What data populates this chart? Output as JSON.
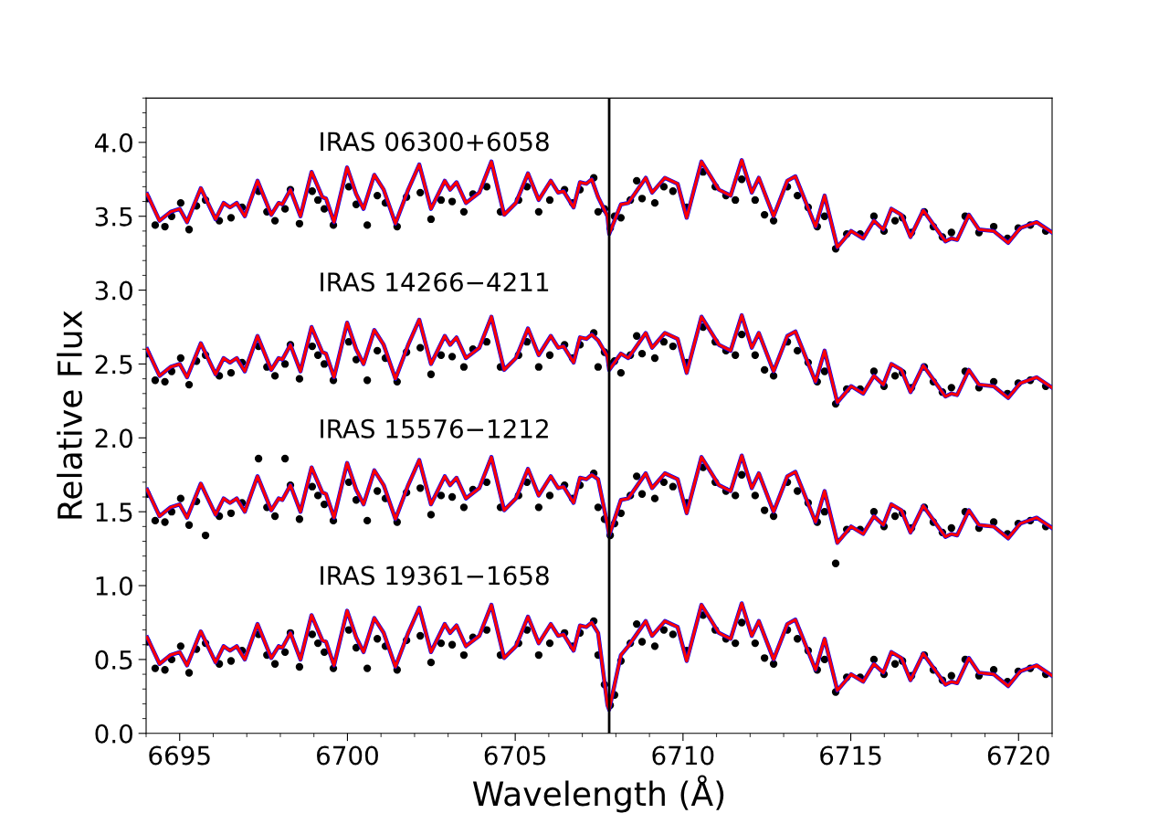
{
  "chart_data": {
    "type": "line",
    "xlabel": "Wavelength (Å)",
    "ylabel": "Relative Flux",
    "xlim": [
      6694,
      6721
    ],
    "ylim": [
      0,
      4.3
    ],
    "xticks": [
      6695,
      6700,
      6705,
      6710,
      6715,
      6720
    ],
    "yticks": [
      {
        "value": 0,
        "label": "0.0"
      },
      {
        "value": 0.5,
        "label": "0.5"
      },
      {
        "value": 1,
        "label": "1.0"
      },
      {
        "value": 1.5,
        "label": "1.5"
      },
      {
        "value": 2,
        "label": "2.0"
      },
      {
        "value": 2.5,
        "label": "2.5"
      },
      {
        "value": 3,
        "label": "3.0"
      },
      {
        "value": 3.5,
        "label": "3.5"
      },
      {
        "value": 4,
        "label": "4.0"
      }
    ],
    "ref_lines": [
      {
        "axis": "x",
        "value": 6707.8,
        "color": "#000000",
        "line_style": "solid"
      }
    ],
    "annotations": [
      "IRAS 06300+6058",
      "IRAS 14266−4211",
      "IRAS 15576−1212",
      "IRAS 19361−1658"
    ],
    "series": [
      {
        "type": "scatter",
        "color": "#000000",
        "x": [
          6694.03,
          6694.27,
          6694.56,
          6694.76,
          6695.03,
          6695.28,
          6695.5,
          6695.77,
          6696.18,
          6696.53,
          6696.86,
          6697.35,
          6697.6,
          6697.84,
          6698.14,
          6698.3,
          6698.57,
          6698.95,
          6699.12,
          6699.31,
          6699.58,
          6700.04,
          6700.26,
          6700.59,
          6700.89,
          6701.13,
          6701.48,
          6701.76,
          6702.17,
          6702.49,
          6702.79,
          6703.12,
          6703.47,
          6703.74,
          6704.15,
          6704.56,
          6705.1,
          6705.35,
          6705.7,
          6706.03,
          6706.47,
          6706.71,
          6706.93,
          6707.34,
          6707.47,
          6707.66,
          6707.83,
          6707.96,
          6708.15,
          6708.43,
          6708.62,
          6708.78,
          6709.16,
          6709.43,
          6709.7,
          6710.11,
          6710.6,
          6710.96,
          6711.28,
          6711.56,
          6711.75,
          6712.15,
          6712.43,
          6712.7,
          6713.11,
          6713.41,
          6713.73,
          6714.0,
          6714.22,
          6714.55,
          6714.88,
          6715.28,
          6715.69,
          6715.99,
          6716.32,
          6716.54,
          6716.81,
          6717.19,
          6717.46,
          6717.73,
          6718.0,
          6718.41,
          6718.82,
          6719.26,
          6719.67,
          6719.99,
          6720.35,
          6720.81
        ],
        "values": [
          3.62,
          3.44,
          3.43,
          3.5,
          3.59,
          3.41,
          3.57,
          3.61,
          3.47,
          3.49,
          3.56,
          3.67,
          3.53,
          3.47,
          3.55,
          3.68,
          3.45,
          3.67,
          3.61,
          3.55,
          3.44,
          3.7,
          3.58,
          3.44,
          3.64,
          3.59,
          3.43,
          3.63,
          3.66,
          3.48,
          3.61,
          3.6,
          3.53,
          3.65,
          3.7,
          3.53,
          3.61,
          3.7,
          3.53,
          3.61,
          3.68,
          3.59,
          3.68,
          3.76,
          3.53,
          3.55,
          3.42,
          3.5,
          3.49,
          3.61,
          3.74,
          3.62,
          3.59,
          3.7,
          3.67,
          3.56,
          3.8,
          3.7,
          3.64,
          3.61,
          3.75,
          3.61,
          3.51,
          3.47,
          3.7,
          3.64,
          3.56,
          3.43,
          3.5,
          3.28,
          3.38,
          3.38,
          3.5,
          3.4,
          3.47,
          3.49,
          3.39,
          3.53,
          3.43,
          3.36,
          3.39,
          3.5,
          3.39,
          3.43,
          3.35,
          3.42,
          3.44,
          3.4
        ]
      },
      {
        "type": "scatter",
        "color": "#000000",
        "x": [
          6694.03,
          6694.27,
          6694.56,
          6694.76,
          6695.03,
          6695.28,
          6695.5,
          6695.77,
          6696.18,
          6696.53,
          6696.86,
          6697.35,
          6697.6,
          6697.84,
          6698.14,
          6698.3,
          6698.57,
          6698.95,
          6699.12,
          6699.31,
          6699.58,
          6700.04,
          6700.26,
          6700.59,
          6700.89,
          6701.13,
          6701.48,
          6701.76,
          6702.17,
          6702.49,
          6702.79,
          6703.12,
          6703.47,
          6703.74,
          6704.15,
          6704.56,
          6705.1,
          6705.35,
          6705.7,
          6706.03,
          6706.47,
          6706.71,
          6706.93,
          6707.34,
          6707.47,
          6707.66,
          6707.83,
          6707.96,
          6708.15,
          6708.43,
          6708.62,
          6708.78,
          6709.16,
          6709.43,
          6709.7,
          6710.11,
          6710.6,
          6710.96,
          6711.28,
          6711.56,
          6711.75,
          6712.15,
          6712.43,
          6712.7,
          6713.11,
          6713.41,
          6713.73,
          6714.0,
          6714.22,
          6714.55,
          6714.88,
          6715.28,
          6715.69,
          6715.99,
          6716.32,
          6716.54,
          6716.81,
          6717.19,
          6717.46,
          6717.73,
          6718.0,
          6718.41,
          6718.82,
          6719.26,
          6719.67,
          6719.99,
          6720.35,
          6720.81
        ],
        "values": [
          2.57,
          2.39,
          2.38,
          2.45,
          2.54,
          2.36,
          2.52,
          2.56,
          2.42,
          2.44,
          2.51,
          2.62,
          2.48,
          2.42,
          2.5,
          2.63,
          2.4,
          2.62,
          2.56,
          2.5,
          2.39,
          2.65,
          2.53,
          2.39,
          2.59,
          2.54,
          2.38,
          2.58,
          2.61,
          2.43,
          2.56,
          2.55,
          2.48,
          2.6,
          2.65,
          2.48,
          2.56,
          2.65,
          2.48,
          2.56,
          2.63,
          2.54,
          2.63,
          2.71,
          2.48,
          2.58,
          2.5,
          2.52,
          2.44,
          2.56,
          2.69,
          2.57,
          2.54,
          2.65,
          2.62,
          2.51,
          2.75,
          2.65,
          2.59,
          2.56,
          2.7,
          2.56,
          2.46,
          2.42,
          2.65,
          2.59,
          2.51,
          2.38,
          2.45,
          2.23,
          2.33,
          2.33,
          2.45,
          2.35,
          2.42,
          2.44,
          2.34,
          2.48,
          2.38,
          2.31,
          2.34,
          2.45,
          2.34,
          2.38,
          2.3,
          2.37,
          2.39,
          2.35
        ]
      },
      {
        "type": "scatter",
        "color": "#000000",
        "x": [
          6694.03,
          6694.27,
          6694.56,
          6694.76,
          6695.03,
          6695.28,
          6695.5,
          6695.77,
          6696.18,
          6696.53,
          6696.86,
          6697.35,
          6697.6,
          6697.84,
          6698.14,
          6698.3,
          6698.57,
          6698.95,
          6699.12,
          6699.31,
          6699.58,
          6700.04,
          6700.26,
          6700.59,
          6700.89,
          6701.13,
          6701.48,
          6701.76,
          6702.17,
          6702.49,
          6702.79,
          6703.12,
          6703.47,
          6703.74,
          6704.15,
          6704.56,
          6705.1,
          6705.35,
          6705.7,
          6706.03,
          6706.47,
          6706.71,
          6706.93,
          6707.34,
          6707.47,
          6707.66,
          6707.83,
          6707.96,
          6708.15,
          6708.43,
          6708.62,
          6708.78,
          6709.16,
          6709.43,
          6709.7,
          6710.11,
          6710.6,
          6710.96,
          6711.28,
          6711.56,
          6711.75,
          6712.15,
          6712.43,
          6712.7,
          6713.11,
          6713.41,
          6713.73,
          6714.0,
          6714.22,
          6714.55,
          6714.88,
          6715.28,
          6715.69,
          6715.99,
          6716.32,
          6716.54,
          6716.81,
          6717.19,
          6717.46,
          6717.73,
          6718.0,
          6718.41,
          6718.82,
          6719.26,
          6719.67,
          6719.99,
          6720.35,
          6720.81
        ],
        "values": [
          1.62,
          1.44,
          1.43,
          1.5,
          1.59,
          1.41,
          1.57,
          1.34,
          1.47,
          1.49,
          1.56,
          1.86,
          1.53,
          1.47,
          1.86,
          1.68,
          1.45,
          1.67,
          1.61,
          1.55,
          1.44,
          1.7,
          1.58,
          1.44,
          1.64,
          1.59,
          1.43,
          1.63,
          1.66,
          1.48,
          1.61,
          1.6,
          1.53,
          1.65,
          1.7,
          1.53,
          1.61,
          1.7,
          1.53,
          1.61,
          1.68,
          1.59,
          1.68,
          1.76,
          1.53,
          1.45,
          1.34,
          1.42,
          1.49,
          1.61,
          1.74,
          1.62,
          1.59,
          1.7,
          1.67,
          1.56,
          1.8,
          1.7,
          1.64,
          1.61,
          1.75,
          1.61,
          1.51,
          1.47,
          1.7,
          1.64,
          1.56,
          1.43,
          1.5,
          1.15,
          1.38,
          1.38,
          1.5,
          1.4,
          1.47,
          1.49,
          1.39,
          1.53,
          1.43,
          1.36,
          1.39,
          1.5,
          1.39,
          1.43,
          1.35,
          1.42,
          1.44,
          1.4
        ]
      },
      {
        "type": "scatter",
        "color": "#000000",
        "x": [
          6694.03,
          6694.27,
          6694.56,
          6694.76,
          6695.03,
          6695.28,
          6695.5,
          6695.77,
          6696.18,
          6696.53,
          6696.86,
          6697.35,
          6697.6,
          6697.84,
          6698.14,
          6698.3,
          6698.57,
          6698.95,
          6699.12,
          6699.31,
          6699.58,
          6700.04,
          6700.26,
          6700.59,
          6700.89,
          6701.13,
          6701.48,
          6701.76,
          6702.17,
          6702.49,
          6702.79,
          6703.12,
          6703.47,
          6703.74,
          6704.15,
          6704.56,
          6705.1,
          6705.35,
          6705.7,
          6706.03,
          6706.47,
          6706.71,
          6706.93,
          6707.34,
          6707.47,
          6707.66,
          6707.83,
          6707.96,
          6708.15,
          6708.43,
          6708.62,
          6708.78,
          6709.16,
          6709.43,
          6709.7,
          6710.11,
          6710.6,
          6710.96,
          6711.28,
          6711.56,
          6711.75,
          6712.15,
          6712.43,
          6712.7,
          6713.11,
          6713.41,
          6713.73,
          6714.0,
          6714.22,
          6714.55,
          6714.88,
          6715.28,
          6715.69,
          6715.99,
          6716.32,
          6716.54,
          6716.81,
          6717.19,
          6717.46,
          6717.73,
          6718.0,
          6718.41,
          6718.82,
          6719.26,
          6719.67,
          6719.99,
          6720.35,
          6720.81
        ],
        "values": [
          0.62,
          0.44,
          0.43,
          0.5,
          0.59,
          0.41,
          0.57,
          0.61,
          0.47,
          0.49,
          0.56,
          0.67,
          0.53,
          0.47,
          0.55,
          0.68,
          0.45,
          0.67,
          0.61,
          0.55,
          0.44,
          0.7,
          0.58,
          0.44,
          0.64,
          0.59,
          0.43,
          0.63,
          0.66,
          0.48,
          0.61,
          0.6,
          0.53,
          0.65,
          0.7,
          0.53,
          0.61,
          0.7,
          0.53,
          0.61,
          0.68,
          0.59,
          0.68,
          0.76,
          0.53,
          0.33,
          0.19,
          0.26,
          0.49,
          0.61,
          0.74,
          0.62,
          0.59,
          0.7,
          0.67,
          0.56,
          0.8,
          0.7,
          0.64,
          0.61,
          0.75,
          0.61,
          0.51,
          0.47,
          0.7,
          0.64,
          0.56,
          0.43,
          0.5,
          0.28,
          0.38,
          0.38,
          0.5,
          0.4,
          0.47,
          0.49,
          0.39,
          0.53,
          0.43,
          0.36,
          0.39,
          0.5,
          0.39,
          0.43,
          0.35,
          0.42,
          0.44,
          0.4
        ]
      },
      {
        "color": "#0000ff",
        "x": [
          6694.03,
          6694.4,
          6694.73,
          6695.0,
          6695.22,
          6695.63,
          6696.07,
          6696.31,
          6696.5,
          6696.7,
          6696.94,
          6697.32,
          6697.73,
          6697.95,
          6698.06,
          6698.3,
          6698.6,
          6698.93,
          6699.25,
          6699.36,
          6699.6,
          6699.99,
          6700.26,
          6700.48,
          6700.8,
          6701.08,
          6701.43,
          6701.81,
          6702.14,
          6702.49,
          6702.9,
          6703.06,
          6703.25,
          6703.53,
          6703.93,
          6704.29,
          6704.67,
          6705.02,
          6705.38,
          6705.7,
          6706.06,
          6706.28,
          6706.44,
          6706.74,
          6706.93,
          6707.12,
          6707.28,
          6707.47,
          6707.75,
          6707.8,
          6708.15,
          6708.37,
          6708.89,
          6709.08,
          6709.46,
          6709.84,
          6710.11,
          6710.55,
          6711.07,
          6711.42,
          6711.75,
          6712.05,
          6712.26,
          6712.7,
          6713.11,
          6713.35,
          6713.95,
          6714.22,
          6714.6,
          6715.01,
          6715.37,
          6715.69,
          6715.97,
          6716.21,
          6716.51,
          6716.78,
          6717.16,
          6717.82,
          6718.0,
          6718.17,
          6718.52,
          6718.82,
          6719.26,
          6719.69,
          6720.05,
          6720.54,
          6721.0
        ],
        "values": [
          3.65,
          3.47,
          3.53,
          3.55,
          3.46,
          3.69,
          3.48,
          3.59,
          3.56,
          3.59,
          3.5,
          3.74,
          3.51,
          3.59,
          3.58,
          3.68,
          3.5,
          3.8,
          3.63,
          3.62,
          3.46,
          3.83,
          3.65,
          3.55,
          3.78,
          3.68,
          3.45,
          3.68,
          3.85,
          3.55,
          3.74,
          3.68,
          3.73,
          3.59,
          3.66,
          3.87,
          3.51,
          3.59,
          3.79,
          3.61,
          3.74,
          3.66,
          3.67,
          3.56,
          3.73,
          3.72,
          3.75,
          3.63,
          3.5,
          3.38,
          3.58,
          3.59,
          3.76,
          3.66,
          3.76,
          3.72,
          3.49,
          3.87,
          3.68,
          3.64,
          3.88,
          3.66,
          3.76,
          3.5,
          3.74,
          3.77,
          3.43,
          3.64,
          3.29,
          3.4,
          3.35,
          3.47,
          3.41,
          3.55,
          3.51,
          3.36,
          3.54,
          3.33,
          3.35,
          3.34,
          3.51,
          3.41,
          3.4,
          3.32,
          3.42,
          3.46,
          3.39
        ]
      },
      {
        "color": "#ff0000",
        "x": [
          6694.03,
          6694.4,
          6694.73,
          6695.0,
          6695.22,
          6695.63,
          6696.07,
          6696.31,
          6696.5,
          6696.7,
          6696.94,
          6697.32,
          6697.73,
          6697.95,
          6698.06,
          6698.3,
          6698.6,
          6698.93,
          6699.25,
          6699.36,
          6699.6,
          6699.99,
          6700.26,
          6700.48,
          6700.8,
          6701.08,
          6701.43,
          6701.81,
          6702.14,
          6702.49,
          6702.9,
          6703.06,
          6703.25,
          6703.53,
          6703.93,
          6704.29,
          6704.67,
          6705.02,
          6705.38,
          6705.7,
          6706.06,
          6706.28,
          6706.44,
          6706.74,
          6706.93,
          6707.12,
          6707.28,
          6707.47,
          6707.75,
          6707.8,
          6708.15,
          6708.37,
          6708.89,
          6709.08,
          6709.46,
          6709.84,
          6710.11,
          6710.55,
          6711.07,
          6711.42,
          6711.75,
          6712.05,
          6712.26,
          6712.7,
          6713.11,
          6713.35,
          6713.95,
          6714.22,
          6714.6,
          6715.01,
          6715.37,
          6715.69,
          6715.97,
          6716.21,
          6716.51,
          6716.78,
          6717.16,
          6717.82,
          6718.0,
          6718.17,
          6718.52,
          6718.82,
          6719.26,
          6719.69,
          6720.05,
          6720.54,
          6721.0
        ],
        "values": [
          3.65,
          3.47,
          3.53,
          3.55,
          3.46,
          3.69,
          3.48,
          3.59,
          3.56,
          3.59,
          3.5,
          3.74,
          3.51,
          3.59,
          3.58,
          3.68,
          3.5,
          3.8,
          3.63,
          3.62,
          3.46,
          3.83,
          3.65,
          3.55,
          3.78,
          3.68,
          3.45,
          3.68,
          3.85,
          3.55,
          3.74,
          3.68,
          3.73,
          3.59,
          3.66,
          3.87,
          3.51,
          3.59,
          3.79,
          3.61,
          3.74,
          3.66,
          3.67,
          3.56,
          3.73,
          3.72,
          3.75,
          3.63,
          3.5,
          3.38,
          3.58,
          3.59,
          3.76,
          3.66,
          3.76,
          3.72,
          3.49,
          3.87,
          3.68,
          3.64,
          3.88,
          3.66,
          3.76,
          3.5,
          3.74,
          3.77,
          3.43,
          3.64,
          3.29,
          3.4,
          3.35,
          3.47,
          3.41,
          3.55,
          3.51,
          3.36,
          3.54,
          3.33,
          3.35,
          3.34,
          3.51,
          3.41,
          3.4,
          3.32,
          3.42,
          3.46,
          3.39
        ]
      },
      {
        "color": "#0000ff",
        "x": [
          6694.03,
          6694.4,
          6694.73,
          6695.0,
          6695.22,
          6695.63,
          6696.07,
          6696.31,
          6696.5,
          6696.7,
          6696.94,
          6697.32,
          6697.73,
          6697.95,
          6698.06,
          6698.3,
          6698.6,
          6698.93,
          6699.25,
          6699.36,
          6699.6,
          6699.99,
          6700.26,
          6700.48,
          6700.8,
          6701.08,
          6701.43,
          6701.81,
          6702.14,
          6702.49,
          6702.9,
          6703.06,
          6703.25,
          6703.53,
          6703.93,
          6704.29,
          6704.67,
          6705.02,
          6705.38,
          6705.7,
          6706.06,
          6706.28,
          6706.44,
          6706.74,
          6706.93,
          6707.12,
          6707.28,
          6707.47,
          6707.75,
          6707.8,
          6708.15,
          6708.37,
          6708.89,
          6709.08,
          6709.46,
          6709.84,
          6710.11,
          6710.55,
          6711.07,
          6711.42,
          6711.75,
          6712.05,
          6712.26,
          6712.7,
          6713.11,
          6713.35,
          6713.95,
          6714.22,
          6714.6,
          6715.01,
          6715.37,
          6715.69,
          6715.97,
          6716.21,
          6716.51,
          6716.78,
          6717.16,
          6717.82,
          6718.0,
          6718.17,
          6718.52,
          6718.82,
          6719.26,
          6719.69,
          6720.05,
          6720.54,
          6721.0
        ],
        "values": [
          2.6,
          2.42,
          2.48,
          2.5,
          2.41,
          2.64,
          2.43,
          2.54,
          2.51,
          2.54,
          2.45,
          2.69,
          2.46,
          2.54,
          2.53,
          2.63,
          2.45,
          2.75,
          2.58,
          2.57,
          2.41,
          2.78,
          2.6,
          2.5,
          2.73,
          2.63,
          2.4,
          2.63,
          2.8,
          2.5,
          2.69,
          2.63,
          2.68,
          2.54,
          2.61,
          2.82,
          2.46,
          2.54,
          2.74,
          2.56,
          2.69,
          2.61,
          2.62,
          2.51,
          2.68,
          2.67,
          2.7,
          2.66,
          2.55,
          2.46,
          2.57,
          2.54,
          2.71,
          2.61,
          2.71,
          2.67,
          2.44,
          2.82,
          2.63,
          2.59,
          2.83,
          2.61,
          2.71,
          2.45,
          2.69,
          2.72,
          2.38,
          2.59,
          2.24,
          2.35,
          2.3,
          2.42,
          2.36,
          2.5,
          2.46,
          2.31,
          2.49,
          2.28,
          2.3,
          2.29,
          2.46,
          2.36,
          2.35,
          2.27,
          2.37,
          2.41,
          2.34
        ]
      },
      {
        "color": "#ff0000",
        "x": [
          6694.03,
          6694.4,
          6694.73,
          6695.0,
          6695.22,
          6695.63,
          6696.07,
          6696.31,
          6696.5,
          6696.7,
          6696.94,
          6697.32,
          6697.73,
          6697.95,
          6698.06,
          6698.3,
          6698.6,
          6698.93,
          6699.25,
          6699.36,
          6699.6,
          6699.99,
          6700.26,
          6700.48,
          6700.8,
          6701.08,
          6701.43,
          6701.81,
          6702.14,
          6702.49,
          6702.9,
          6703.06,
          6703.25,
          6703.53,
          6703.93,
          6704.29,
          6704.67,
          6705.02,
          6705.38,
          6705.7,
          6706.06,
          6706.28,
          6706.44,
          6706.74,
          6706.93,
          6707.12,
          6707.28,
          6707.47,
          6707.75,
          6707.8,
          6708.15,
          6708.37,
          6708.89,
          6709.08,
          6709.46,
          6709.84,
          6710.11,
          6710.55,
          6711.07,
          6711.42,
          6711.75,
          6712.05,
          6712.26,
          6712.7,
          6713.11,
          6713.35,
          6713.95,
          6714.22,
          6714.6,
          6715.01,
          6715.37,
          6715.69,
          6715.97,
          6716.21,
          6716.51,
          6716.78,
          6717.16,
          6717.82,
          6718.0,
          6718.17,
          6718.52,
          6718.82,
          6719.26,
          6719.69,
          6720.05,
          6720.54,
          6721.0
        ],
        "values": [
          2.6,
          2.42,
          2.48,
          2.5,
          2.41,
          2.64,
          2.43,
          2.54,
          2.51,
          2.54,
          2.45,
          2.69,
          2.46,
          2.54,
          2.53,
          2.63,
          2.45,
          2.75,
          2.58,
          2.57,
          2.41,
          2.78,
          2.6,
          2.5,
          2.73,
          2.63,
          2.4,
          2.63,
          2.8,
          2.5,
          2.69,
          2.63,
          2.68,
          2.54,
          2.61,
          2.82,
          2.46,
          2.54,
          2.74,
          2.56,
          2.69,
          2.61,
          2.62,
          2.51,
          2.68,
          2.67,
          2.7,
          2.66,
          2.55,
          2.46,
          2.57,
          2.54,
          2.71,
          2.61,
          2.71,
          2.67,
          2.44,
          2.82,
          2.63,
          2.59,
          2.83,
          2.61,
          2.71,
          2.45,
          2.69,
          2.72,
          2.38,
          2.59,
          2.24,
          2.35,
          2.3,
          2.42,
          2.36,
          2.5,
          2.46,
          2.31,
          2.49,
          2.28,
          2.3,
          2.29,
          2.46,
          2.36,
          2.35,
          2.27,
          2.37,
          2.41,
          2.34
        ]
      },
      {
        "color": "#0000ff",
        "x": [
          6694.03,
          6694.4,
          6694.73,
          6695.0,
          6695.22,
          6695.63,
          6696.07,
          6696.31,
          6696.5,
          6696.7,
          6696.94,
          6697.32,
          6697.73,
          6697.95,
          6698.06,
          6698.3,
          6698.6,
          6698.93,
          6699.25,
          6699.36,
          6699.6,
          6699.99,
          6700.26,
          6700.48,
          6700.8,
          6701.08,
          6701.43,
          6701.81,
          6702.14,
          6702.49,
          6702.9,
          6703.06,
          6703.25,
          6703.53,
          6703.93,
          6704.29,
          6704.67,
          6705.02,
          6705.38,
          6705.7,
          6706.06,
          6706.28,
          6706.44,
          6706.74,
          6706.93,
          6707.12,
          6707.28,
          6707.47,
          6707.75,
          6707.8,
          6708.15,
          6708.37,
          6708.89,
          6709.08,
          6709.46,
          6709.84,
          6710.11,
          6710.55,
          6711.07,
          6711.42,
          6711.75,
          6712.05,
          6712.26,
          6712.7,
          6713.11,
          6713.35,
          6713.95,
          6714.22,
          6714.6,
          6715.01,
          6715.37,
          6715.69,
          6715.97,
          6716.21,
          6716.51,
          6716.78,
          6717.16,
          6717.82,
          6718.0,
          6718.17,
          6718.52,
          6718.82,
          6719.26,
          6719.69,
          6720.05,
          6720.54,
          6721.0
        ],
        "values": [
          1.65,
          1.47,
          1.53,
          1.55,
          1.46,
          1.69,
          1.48,
          1.59,
          1.56,
          1.59,
          1.5,
          1.74,
          1.51,
          1.59,
          1.58,
          1.68,
          1.5,
          1.8,
          1.63,
          1.62,
          1.46,
          1.83,
          1.65,
          1.55,
          1.78,
          1.68,
          1.45,
          1.68,
          1.85,
          1.55,
          1.74,
          1.68,
          1.73,
          1.59,
          1.66,
          1.87,
          1.51,
          1.59,
          1.79,
          1.61,
          1.74,
          1.66,
          1.67,
          1.56,
          1.73,
          1.72,
          1.75,
          1.72,
          1.41,
          1.34,
          1.58,
          1.59,
          1.76,
          1.66,
          1.76,
          1.72,
          1.49,
          1.87,
          1.68,
          1.64,
          1.88,
          1.66,
          1.76,
          1.5,
          1.74,
          1.77,
          1.43,
          1.64,
          1.29,
          1.4,
          1.35,
          1.47,
          1.41,
          1.55,
          1.51,
          1.36,
          1.54,
          1.33,
          1.35,
          1.34,
          1.51,
          1.41,
          1.4,
          1.32,
          1.42,
          1.46,
          1.39
        ]
      },
      {
        "color": "#ff0000",
        "x": [
          6694.03,
          6694.4,
          6694.73,
          6695.0,
          6695.22,
          6695.63,
          6696.07,
          6696.31,
          6696.5,
          6696.7,
          6696.94,
          6697.32,
          6697.73,
          6697.95,
          6698.06,
          6698.3,
          6698.6,
          6698.93,
          6699.25,
          6699.36,
          6699.6,
          6699.99,
          6700.26,
          6700.48,
          6700.8,
          6701.08,
          6701.43,
          6701.81,
          6702.14,
          6702.49,
          6702.9,
          6703.06,
          6703.25,
          6703.53,
          6703.93,
          6704.29,
          6704.67,
          6705.02,
          6705.38,
          6705.7,
          6706.06,
          6706.28,
          6706.44,
          6706.74,
          6706.93,
          6707.12,
          6707.28,
          6707.47,
          6707.75,
          6707.8,
          6708.15,
          6708.37,
          6708.89,
          6709.08,
          6709.46,
          6709.84,
          6710.11,
          6710.55,
          6711.07,
          6711.42,
          6711.75,
          6712.05,
          6712.26,
          6712.7,
          6713.11,
          6713.35,
          6713.95,
          6714.22,
          6714.6,
          6715.01,
          6715.37,
          6715.69,
          6715.97,
          6716.21,
          6716.51,
          6716.78,
          6717.16,
          6717.82,
          6718.0,
          6718.17,
          6718.52,
          6718.82,
          6719.26,
          6719.69,
          6720.05,
          6720.54,
          6721.0
        ],
        "values": [
          1.65,
          1.47,
          1.53,
          1.55,
          1.46,
          1.69,
          1.48,
          1.59,
          1.56,
          1.59,
          1.5,
          1.74,
          1.51,
          1.59,
          1.58,
          1.68,
          1.5,
          1.8,
          1.63,
          1.62,
          1.46,
          1.83,
          1.65,
          1.55,
          1.78,
          1.68,
          1.45,
          1.68,
          1.85,
          1.55,
          1.74,
          1.68,
          1.73,
          1.59,
          1.66,
          1.87,
          1.51,
          1.59,
          1.79,
          1.61,
          1.74,
          1.66,
          1.67,
          1.56,
          1.73,
          1.72,
          1.75,
          1.72,
          1.41,
          1.34,
          1.58,
          1.59,
          1.76,
          1.66,
          1.76,
          1.72,
          1.49,
          1.87,
          1.68,
          1.64,
          1.88,
          1.66,
          1.76,
          1.5,
          1.74,
          1.77,
          1.43,
          1.64,
          1.29,
          1.4,
          1.35,
          1.47,
          1.41,
          1.55,
          1.51,
          1.36,
          1.54,
          1.33,
          1.35,
          1.34,
          1.51,
          1.41,
          1.4,
          1.32,
          1.42,
          1.46,
          1.39
        ]
      },
      {
        "color": "#0000ff",
        "x": [
          6694.03,
          6694.4,
          6694.73,
          6695.0,
          6695.22,
          6695.63,
          6696.07,
          6696.31,
          6696.5,
          6696.7,
          6696.94,
          6697.32,
          6697.73,
          6697.95,
          6698.06,
          6698.3,
          6698.6,
          6698.93,
          6699.25,
          6699.36,
          6699.6,
          6699.99,
          6700.26,
          6700.48,
          6700.8,
          6701.08,
          6701.43,
          6701.81,
          6702.14,
          6702.49,
          6702.9,
          6703.06,
          6703.25,
          6703.53,
          6703.93,
          6704.29,
          6704.67,
          6705.02,
          6705.38,
          6705.7,
          6706.06,
          6706.28,
          6706.44,
          6706.74,
          6706.93,
          6707.12,
          6707.28,
          6707.47,
          6707.75,
          6707.8,
          6708.15,
          6708.37,
          6708.89,
          6709.08,
          6709.46,
          6709.84,
          6710.11,
          6710.55,
          6711.07,
          6711.42,
          6711.75,
          6712.05,
          6712.26,
          6712.7,
          6713.11,
          6713.35,
          6713.95,
          6714.22,
          6714.6,
          6715.01,
          6715.37,
          6715.69,
          6715.97,
          6716.21,
          6716.51,
          6716.78,
          6717.16,
          6717.82,
          6718.0,
          6718.17,
          6718.52,
          6718.82,
          6719.26,
          6719.69,
          6720.05,
          6720.54,
          6721.0
        ],
        "values": [
          0.65,
          0.47,
          0.53,
          0.55,
          0.46,
          0.69,
          0.48,
          0.59,
          0.56,
          0.59,
          0.5,
          0.74,
          0.51,
          0.59,
          0.58,
          0.68,
          0.5,
          0.8,
          0.63,
          0.62,
          0.46,
          0.83,
          0.65,
          0.55,
          0.78,
          0.68,
          0.45,
          0.68,
          0.85,
          0.55,
          0.74,
          0.68,
          0.73,
          0.59,
          0.66,
          0.87,
          0.51,
          0.59,
          0.79,
          0.61,
          0.74,
          0.66,
          0.67,
          0.56,
          0.73,
          0.72,
          0.75,
          0.68,
          0.19,
          0.16,
          0.53,
          0.59,
          0.76,
          0.66,
          0.76,
          0.72,
          0.49,
          0.87,
          0.68,
          0.64,
          0.88,
          0.66,
          0.76,
          0.5,
          0.74,
          0.77,
          0.43,
          0.64,
          0.29,
          0.4,
          0.35,
          0.47,
          0.41,
          0.55,
          0.51,
          0.36,
          0.54,
          0.33,
          0.35,
          0.34,
          0.51,
          0.41,
          0.4,
          0.32,
          0.42,
          0.46,
          0.39
        ]
      },
      {
        "color": "#ff0000",
        "x": [
          6694.03,
          6694.4,
          6694.73,
          6695.0,
          6695.22,
          6695.63,
          6696.07,
          6696.31,
          6696.5,
          6696.7,
          6696.94,
          6697.32,
          6697.73,
          6697.95,
          6698.06,
          6698.3,
          6698.6,
          6698.93,
          6699.25,
          6699.36,
          6699.6,
          6699.99,
          6700.26,
          6700.48,
          6700.8,
          6701.08,
          6701.43,
          6701.81,
          6702.14,
          6702.49,
          6702.9,
          6703.06,
          6703.25,
          6703.53,
          6703.93,
          6704.29,
          6704.67,
          6705.02,
          6705.38,
          6705.7,
          6706.06,
          6706.28,
          6706.44,
          6706.74,
          6706.93,
          6707.12,
          6707.28,
          6707.47,
          6707.75,
          6707.8,
          6708.15,
          6708.37,
          6708.89,
          6709.08,
          6709.46,
          6709.84,
          6710.11,
          6710.55,
          6711.07,
          6711.42,
          6711.75,
          6712.05,
          6712.26,
          6712.7,
          6713.11,
          6713.35,
          6713.95,
          6714.22,
          6714.6,
          6715.01,
          6715.37,
          6715.69,
          6715.97,
          6716.21,
          6716.51,
          6716.78,
          6717.16,
          6717.82,
          6718.0,
          6718.17,
          6718.52,
          6718.82,
          6719.26,
          6719.69,
          6720.05,
          6720.54,
          6721.0
        ],
        "values": [
          0.65,
          0.47,
          0.53,
          0.55,
          0.46,
          0.69,
          0.48,
          0.59,
          0.56,
          0.59,
          0.5,
          0.74,
          0.51,
          0.59,
          0.58,
          0.68,
          0.5,
          0.8,
          0.63,
          0.62,
          0.46,
          0.83,
          0.65,
          0.55,
          0.78,
          0.68,
          0.45,
          0.68,
          0.85,
          0.55,
          0.74,
          0.68,
          0.73,
          0.59,
          0.66,
          0.87,
          0.51,
          0.59,
          0.79,
          0.61,
          0.74,
          0.66,
          0.67,
          0.56,
          0.73,
          0.72,
          0.75,
          0.68,
          0.19,
          0.16,
          0.53,
          0.59,
          0.76,
          0.66,
          0.76,
          0.72,
          0.49,
          0.87,
          0.68,
          0.64,
          0.88,
          0.66,
          0.76,
          0.5,
          0.74,
          0.77,
          0.43,
          0.64,
          0.29,
          0.4,
          0.35,
          0.47,
          0.41,
          0.55,
          0.51,
          0.36,
          0.54,
          0.33,
          0.35,
          0.34,
          0.51,
          0.41,
          0.4,
          0.32,
          0.42,
          0.46,
          0.39
        ]
      }
    ]
  }
}
